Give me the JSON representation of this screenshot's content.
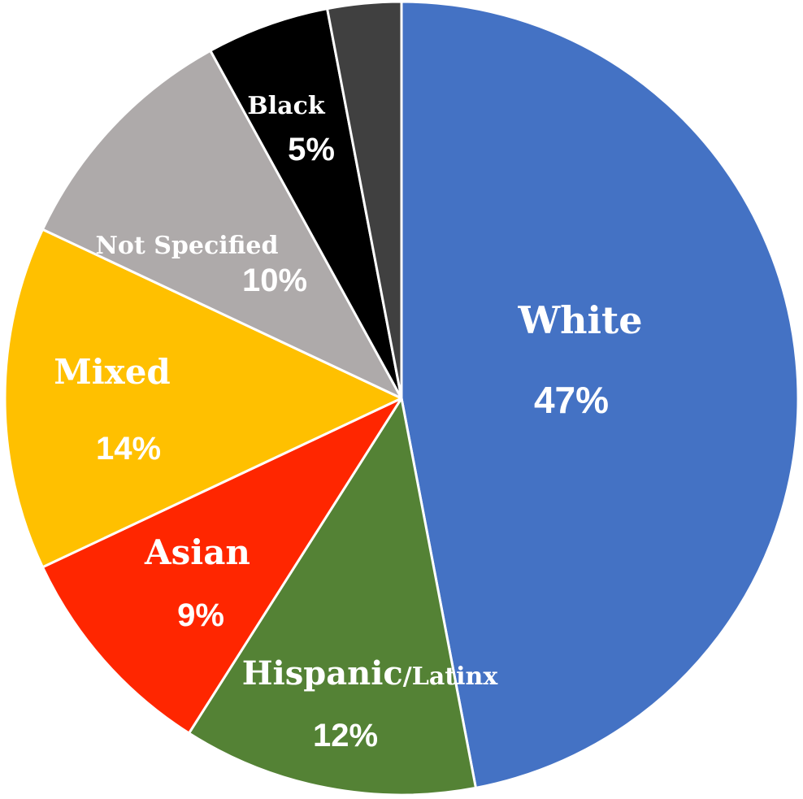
{
  "chart_data": {
    "type": "pie",
    "title": "",
    "legend": "none",
    "slices": [
      {
        "name": "White",
        "value": 47,
        "label": "White",
        "sublabel": "",
        "percent_label": "47%",
        "color": "#4472C4"
      },
      {
        "name": "Hispanic/Latinx",
        "value": 12,
        "label": "Hispanic",
        "sublabel": "/Latinx",
        "percent_label": "12%",
        "color": "#548235"
      },
      {
        "name": "Asian",
        "value": 9,
        "label": "Asian",
        "sublabel": "",
        "percent_label": "9%",
        "color": "#FF2600"
      },
      {
        "name": "Mixed",
        "value": 14,
        "label": "Mixed",
        "sublabel": "",
        "percent_label": "14%",
        "color": "#FFC000"
      },
      {
        "name": "Not Specified",
        "value": 10,
        "label": "Not Specified",
        "sublabel": "",
        "percent_label": "10%",
        "color": "#AEAAAA"
      },
      {
        "name": "Black",
        "value": 5,
        "label": "Black",
        "sublabel": "",
        "percent_label": "5%",
        "color": "#000000"
      },
      {
        "name": "",
        "value": 3,
        "label": "",
        "sublabel": "",
        "percent_label": "",
        "color": "#404040"
      }
    ]
  }
}
